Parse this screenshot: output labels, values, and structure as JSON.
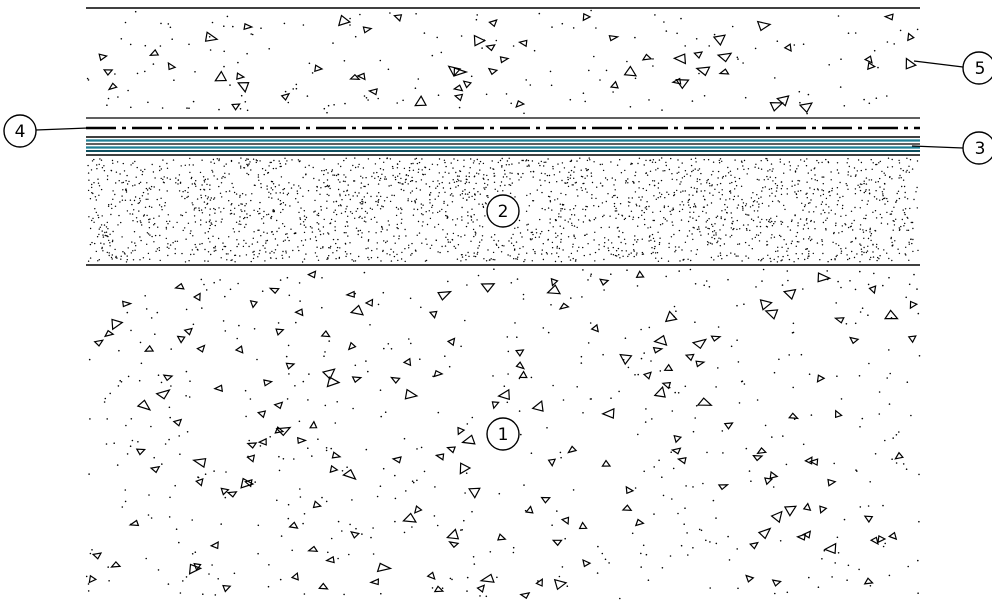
{
  "diagram": {
    "type": "layered section detail",
    "colors": {
      "line": "#000000",
      "background": "#ffffff",
      "membrane": "#1f7f95",
      "membrane_dark": "#0f4f5f"
    },
    "hatches": [
      "concrete-aggregate",
      "insulation-stipple",
      "waterproof-membrane",
      "separation-layer",
      "concrete-aggregate"
    ],
    "callouts": [
      {
        "id": "1",
        "label": "1"
      },
      {
        "id": "2",
        "label": "2"
      },
      {
        "id": "3",
        "label": "3"
      },
      {
        "id": "4",
        "label": "4"
      },
      {
        "id": "5",
        "label": "5"
      }
    ]
  }
}
